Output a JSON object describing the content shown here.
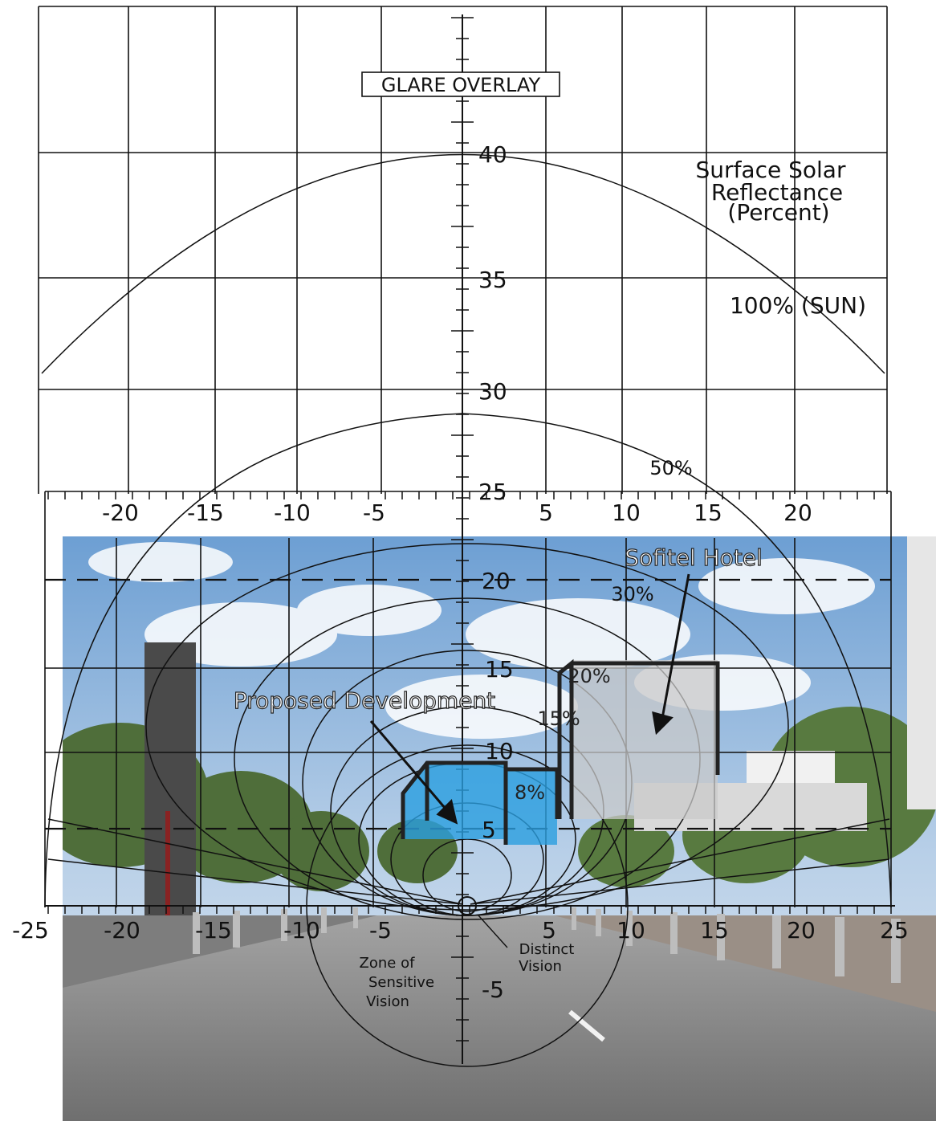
{
  "title": "GLARE OVERLAY",
  "reflectance_heading": [
    "Surface Solar",
    "Reflectance",
    "(Percent)"
  ],
  "contours": {
    "sun": "100% (SUN)",
    "c50": "50%",
    "c30": "30%",
    "c20": "20%",
    "c15": "15%",
    "c8": "8%"
  },
  "annotations": {
    "hotel": "Sofitel Hotel",
    "proposed": "Proposed Development",
    "zone_sensitive": [
      "Zone of",
      "Sensitive",
      "Vision"
    ],
    "distinct": [
      "Distinct",
      "Vision"
    ]
  },
  "axes": {
    "vertical_ticks": [
      "40",
      "35",
      "30",
      "25",
      "20",
      "15",
      "10",
      "5",
      "-5"
    ],
    "upper_scale": [
      "-20",
      "-15",
      "-10",
      "-5",
      "5",
      "10",
      "15",
      "20"
    ],
    "lower_scale": [
      "-25",
      "-20",
      "-15",
      "-10",
      "-5",
      "5",
      "10",
      "15",
      "20",
      "25"
    ]
  },
  "colors": {
    "line": "#111111",
    "proposed_fill": "#2a9fe0",
    "hotel_fill": "#c9c9c9",
    "sky": "#8fb6dc",
    "road": "#8a8a8a",
    "trees": "#4f6e3a"
  }
}
